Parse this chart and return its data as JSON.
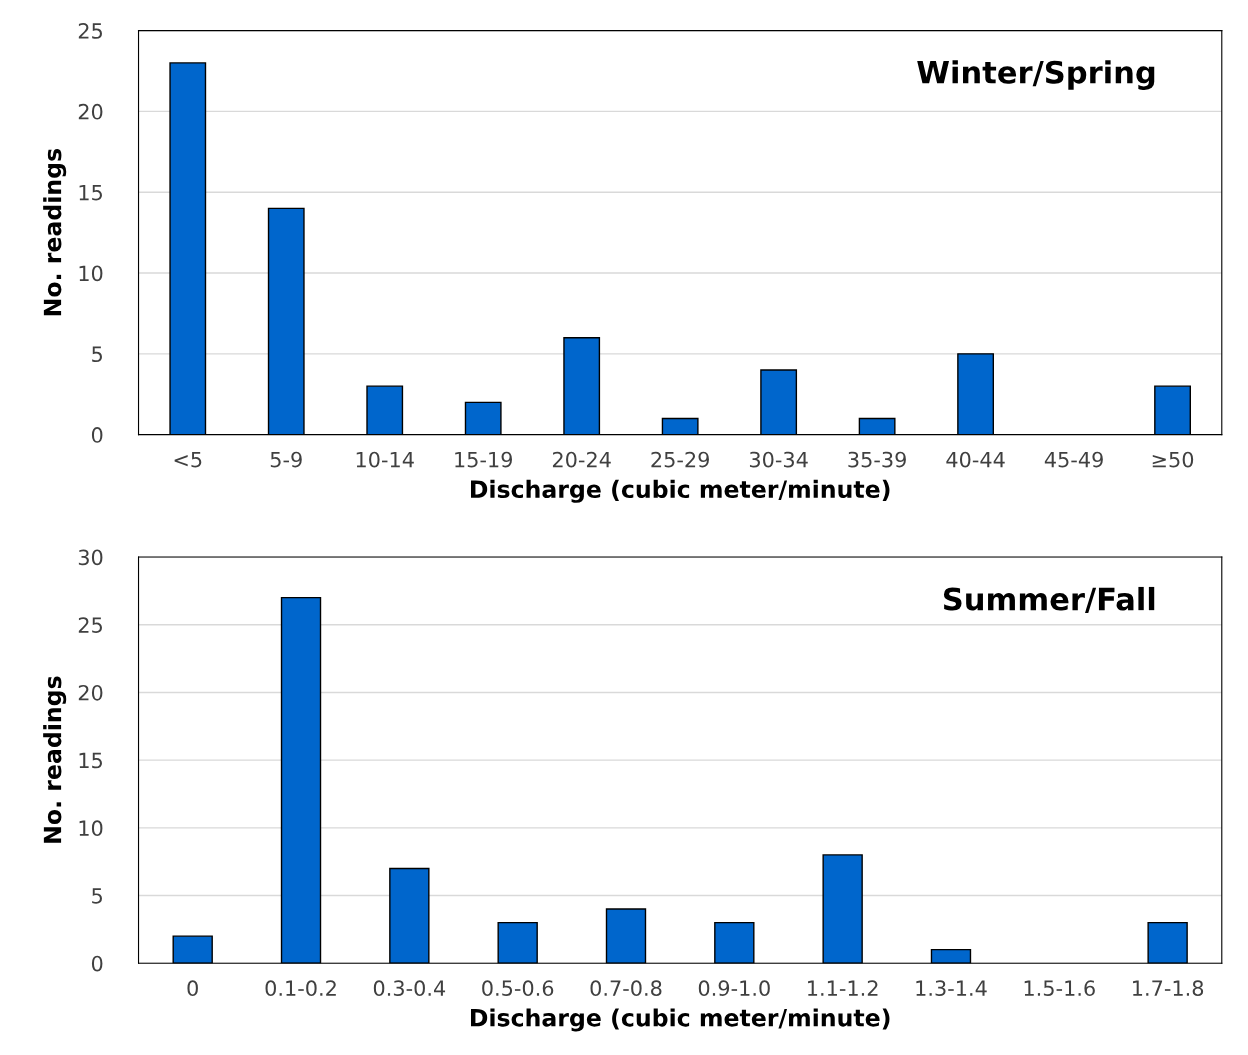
{
  "chart_data": [
    {
      "type": "bar",
      "categories": [
        "<5",
        "5-9",
        "10-14",
        "15-19",
        "20-24",
        "25-29",
        "30-34",
        "35-39",
        "40-44",
        "45-49",
        "≥50"
      ],
      "values": [
        23,
        14,
        3,
        2,
        6,
        1,
        4,
        1,
        5,
        0,
        3
      ],
      "color": "#0066cc",
      "ylim": [
        0,
        25
      ],
      "yticks": [
        0,
        5,
        10,
        15,
        20,
        25
      ],
      "grid": "y",
      "xlabel": "Discharge (cubic meter/minute)",
      "ylabel": "No. readings",
      "annotations": [
        "Winter/Spring"
      ]
    },
    {
      "type": "bar",
      "categories": [
        "0",
        "0.1-0.2",
        "0.3-0.4",
        "0.5-0.6",
        "0.7-0.8",
        "0.9-1.0",
        "1.1-1.2",
        "1.3-1.4",
        "1.5-1.6",
        "1.7-1.8"
      ],
      "values": [
        2,
        27,
        7,
        3,
        4,
        3,
        8,
        1,
        0,
        3
      ],
      "color": "#0066cc",
      "ylim": [
        0,
        30
      ],
      "yticks": [
        0,
        5,
        10,
        15,
        20,
        25,
        30
      ],
      "grid": "y",
      "xlabel": "Discharge (cubic meter/minute)",
      "ylabel": "No. readings",
      "annotations": [
        "Summer/Fall"
      ]
    }
  ]
}
